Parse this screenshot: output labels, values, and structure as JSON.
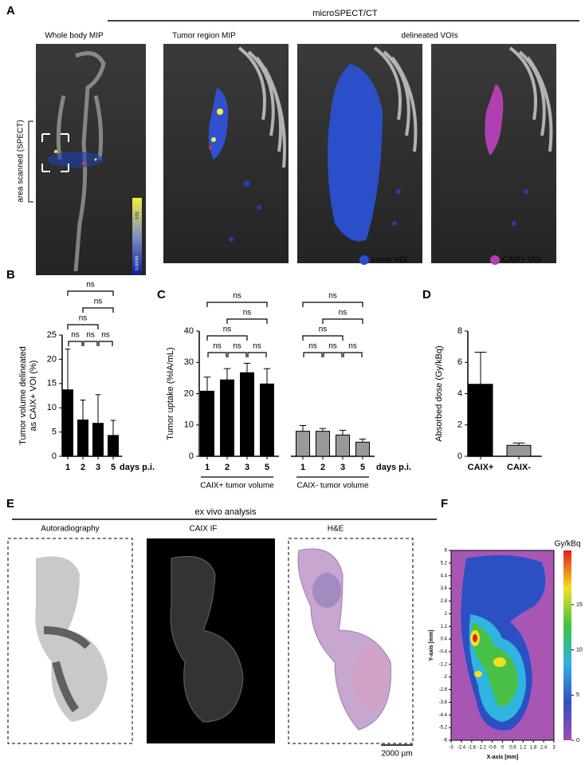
{
  "figure": {
    "panel_labels": [
      "A",
      "B",
      "C",
      "D",
      "E",
      "F"
    ],
    "a": {
      "title": "microSPECT/CT",
      "whole_body_label": "Whole body MIP",
      "tumor_region_label": "Tumor region MIP",
      "voi_label": "delineated VOIs",
      "scan_label": "area scanned (SPECT)",
      "colorbar_labels": [
        "0.01",
        "0.00099"
      ],
      "legend": [
        "tumor VOI",
        "CAIX+ VOI"
      ]
    },
    "e": {
      "title": "ex vivo analysis",
      "image_labels": [
        "Autoradiography",
        "CAIX IF",
        "H&E"
      ],
      "scale_bar": "2000 µm"
    }
  },
  "chart_data": [
    {
      "type": "bar",
      "y_label": [
        "Tumor volume delineated",
        "as CAIX+ VOI (%)"
      ],
      "categories": [
        "1",
        "2",
        "3",
        "5"
      ],
      "x_suffix": "days p.i.",
      "values": [
        13.7,
        7.5,
        6.8,
        4.3
      ],
      "errors": [
        8.4,
        4.1,
        5.9,
        3.1
      ],
      "color": "#000000",
      "ylim": [
        0,
        25
      ],
      "yticks": [
        0,
        5,
        10,
        15,
        20,
        25
      ],
      "annotations": [
        {
          "text": "ns",
          "from": "1",
          "to": "2"
        },
        {
          "text": "ns",
          "from": "2",
          "to": "3"
        },
        {
          "text": "ns",
          "from": "3",
          "to": "5"
        },
        {
          "text": "ns",
          "from": "1",
          "to": "3"
        },
        {
          "text": "ns",
          "from": "2",
          "to": "5"
        },
        {
          "text": "ns",
          "from": "1",
          "to": "5"
        }
      ]
    },
    {
      "type": "bar",
      "y_label": [
        "Tumor uptake (%IA/mL)"
      ],
      "categories": [
        "1",
        "2",
        "3",
        "5"
      ],
      "x_suffix": "days p.i.",
      "series": [
        {
          "name": "CAIX+ tumor volume",
          "color": "#000000",
          "values": [
            20.8,
            24.4,
            26.7,
            23.1
          ],
          "errors": [
            4.5,
            3.6,
            3.0,
            4.9
          ],
          "annotations": [
            {
              "text": "ns",
              "from": "1",
              "to": "2"
            },
            {
              "text": "ns",
              "from": "2",
              "to": "3"
            },
            {
              "text": "ns",
              "from": "3",
              "to": "5"
            },
            {
              "text": "ns",
              "from": "1",
              "to": "3"
            },
            {
              "text": "ns",
              "from": "2",
              "to": "5"
            },
            {
              "text": "ns",
              "from": "1",
              "to": "5"
            }
          ]
        },
        {
          "name": "CAIX- tumor volume",
          "color": "#999999",
          "values": [
            8.0,
            8.0,
            6.8,
            4.5
          ],
          "errors": [
            1.8,
            0.9,
            1.5,
            1.0
          ],
          "annotations": [
            {
              "text": "ns",
              "from": "1",
              "to": "2"
            },
            {
              "text": "ns",
              "from": "2",
              "to": "3"
            },
            {
              "text": "ns",
              "from": "3",
              "to": "5"
            },
            {
              "text": "ns",
              "from": "1",
              "to": "3"
            },
            {
              "text": "ns",
              "from": "2",
              "to": "5"
            },
            {
              "text": "ns",
              "from": "1",
              "to": "5"
            }
          ]
        }
      ],
      "ylim": [
        0,
        40
      ],
      "yticks": [
        0,
        10,
        20,
        30,
        40
      ]
    },
    {
      "type": "bar",
      "y_label": [
        "Absorbed dose (Gy/kBq)"
      ],
      "categories": [
        "CAIX+",
        "CAIX-"
      ],
      "values": [
        4.6,
        0.7
      ],
      "errors": [
        2.05,
        0.15
      ],
      "colors": [
        "#000000",
        "#999999"
      ],
      "ylim": [
        0,
        8
      ],
      "yticks": [
        0,
        2,
        4,
        6,
        8
      ]
    },
    {
      "type": "heatmap",
      "x_label": "X-axis [mm]",
      "y_label": "Y-axis [mm]",
      "colorbar_title": "Gy/kBq",
      "xlim": [
        -3,
        3
      ],
      "xticks": [
        -3,
        -2.4,
        -1.8,
        -1.2,
        -0.6,
        0,
        0.6,
        1.2,
        1.8,
        2.4,
        3
      ],
      "ylim": [
        -6,
        6
      ],
      "yticks": [
        -6,
        -5.2,
        -4.4,
        -3.6,
        -2.8,
        -2,
        -1.2,
        -0.4,
        0.4,
        1.2,
        2,
        2.8,
        3.6,
        4.4,
        5.2,
        6
      ],
      "clim": [
        0,
        21
      ],
      "colorbar_ticks": [
        0,
        5,
        10,
        15
      ]
    }
  ]
}
